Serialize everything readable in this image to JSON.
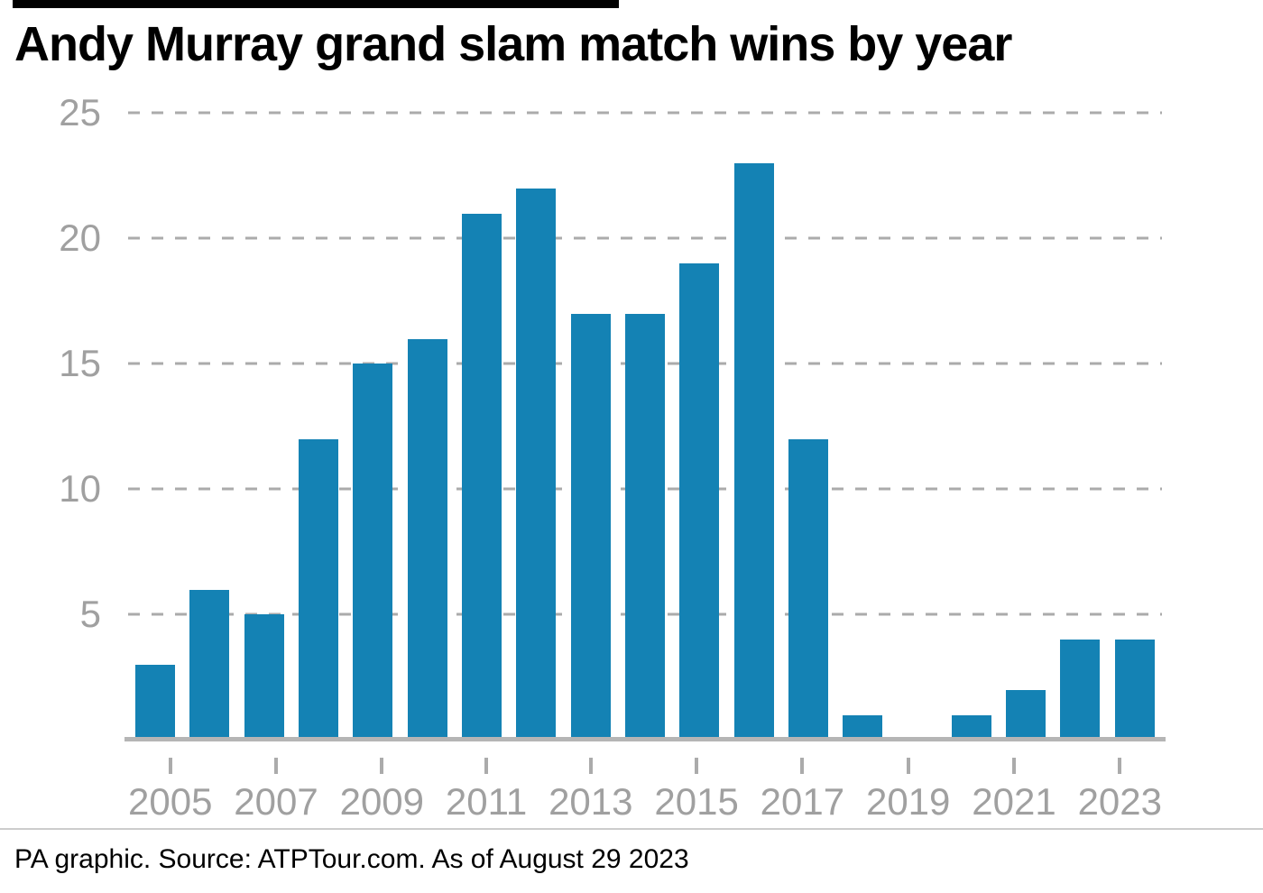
{
  "title": "Andy Murray grand slam match wins by year",
  "footer": "PA graphic. Source: ATPTour.com. As of August 29 2023",
  "colors": {
    "bar": "#1482b4",
    "axis_text": "#a0a0a0",
    "gridline": "#ababab",
    "baseline": "#b5b5b5",
    "title": "#000000"
  },
  "chart_data": {
    "type": "bar",
    "title": "Andy Murray grand slam match wins by year",
    "x": [
      2005,
      2006,
      2007,
      2008,
      2009,
      2010,
      2011,
      2012,
      2013,
      2014,
      2015,
      2016,
      2017,
      2018,
      2019,
      2020,
      2021,
      2022,
      2023
    ],
    "values": [
      3,
      6,
      5,
      12,
      15,
      16,
      21,
      22,
      17,
      17,
      19,
      23,
      12,
      1,
      0,
      1,
      2,
      4,
      4
    ],
    "xlabel": "",
    "ylabel": "",
    "ylim": [
      0,
      25
    ],
    "yticks": [
      5,
      10,
      15,
      20,
      25
    ],
    "xticks_labeled": [
      2005,
      2007,
      2009,
      2011,
      2013,
      2015,
      2017,
      2019,
      2021,
      2023
    ],
    "grid": "horizontal-dashed",
    "legend": "none",
    "source": "PA graphic. Source: ATPTour.com. As of August 29 2023"
  }
}
